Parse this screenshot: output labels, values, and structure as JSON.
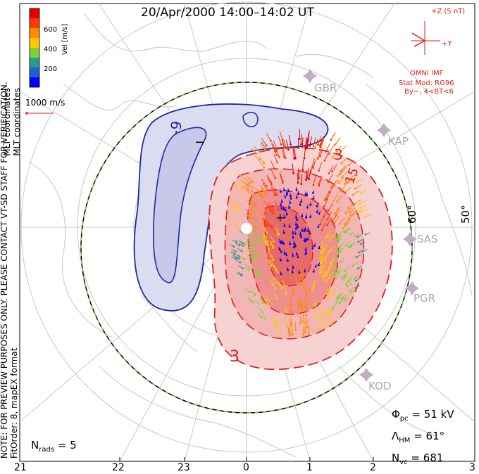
{
  "title": "20/Apr/2000  14:00–14:02  UT",
  "colorbar": {
    "label": "Vel [m/s]",
    "ticks": [
      "600",
      "400",
      "200"
    ],
    "colors": [
      "#0000ff",
      "#1f7fd0",
      "#2a9a8a",
      "#7fd13b",
      "#e8e830",
      "#ffb000",
      "#ff6a00",
      "#e00000"
    ]
  },
  "coords_label": "MLT coordinates",
  "ref_vector": "1000 m/s",
  "side_note_1": "NOTE: FOR PREVIEW PURPOSES ONLY. PLEASE CONTACT VT-SD STAFF FOR VERIFICATION.",
  "side_note_2": "FitOrder: 8, mapEX format",
  "imf": {
    "z_label": "+Z (5 nT)",
    "y_label": "+Y",
    "source": "OMNI IMF",
    "model": "Stat Mod: RG96",
    "condition": "By−, 4<BT<6"
  },
  "stations": [
    "GBR",
    "KAP",
    "SAS",
    "PGR",
    "KOD"
  ],
  "lat_labels": [
    "60°",
    "50°"
  ],
  "contour_labels": [
    "-9",
    "−",
    "3",
    "15",
    "3",
    "+"
  ],
  "mlt_ticks": [
    "21",
    "22",
    "23",
    "0",
    "1",
    "2",
    "3"
  ],
  "stats": {
    "phi_sym": "Φ",
    "phi_sub": "pc",
    "phi_val": "= 51 kV",
    "lam_sym": "Λ",
    "lam_sub": "HM",
    "lam_val": "= 61°",
    "nvc_sym": "N",
    "nvc_sub": "vc",
    "nvc_val": "= 681",
    "nrads_sym": "N",
    "nrads_sub": "rads",
    "nrads_val": "= 5"
  },
  "accent_colors": {
    "positive": "#e0201a",
    "negative": "#1a2aa0",
    "grid": "#c8c8c8"
  }
}
